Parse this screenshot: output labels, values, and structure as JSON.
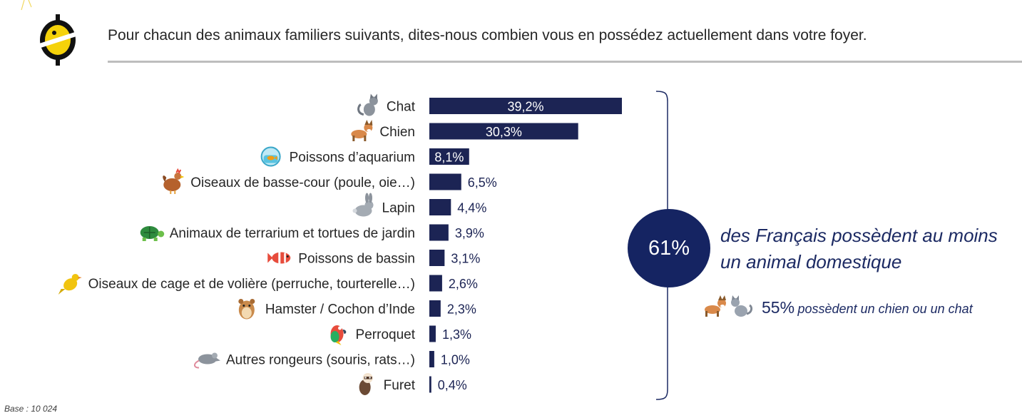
{
  "question": "Pour chacun des animaux familiers suivants, dites-nous combien vous en possédez actuellement dans votre foyer.",
  "chart_data": {
    "type": "bar",
    "orientation": "horizontal",
    "categories": [
      "Chat",
      "Chien",
      "Poissons d’aquarium",
      "Oiseaux de basse-cour (poule, oie…)",
      "Lapin",
      "Animaux de terrarium et tortues de jardin",
      "Poissons de bassin",
      "Oiseaux de cage et de volière (perruche, tourterelle…)",
      "Hamster / Cochon d’Inde",
      "Perroquet",
      "Autres rongeurs (souris, rats…)",
      "Furet"
    ],
    "values": [
      39.2,
      30.3,
      8.1,
      6.5,
      4.4,
      3.9,
      3.1,
      2.6,
      2.3,
      1.3,
      1.0,
      0.4
    ],
    "value_labels": [
      "39,2%",
      "30,3%",
      "8,1%",
      "6,5%",
      "4,4%",
      "3,9%",
      "3,1%",
      "2,6%",
      "2,3%",
      "1,3%",
      "1,0%",
      "0,4%"
    ],
    "icons": [
      "cat-icon",
      "dog-icon",
      "fishbowl-icon",
      "hen-icon",
      "rabbit-icon",
      "turtle-icon",
      "fish-icon",
      "canary-icon",
      "hamster-icon",
      "parrot-icon",
      "mouse-icon",
      "ferret-icon"
    ],
    "bar_color": "#1c2454",
    "unit": "%",
    "title": "",
    "xlabel": "",
    "ylabel": ""
  },
  "summary": {
    "big_pct": "61%",
    "headline": "des Français possèdent au moins un animal domestique",
    "sub_pct": "55%",
    "sub_text": "possèdent un chien ou un chat",
    "sub_icons": [
      "dog-icon",
      "cat-icon"
    ]
  },
  "base": "Base : 10 024",
  "colors": {
    "accent": "#152462",
    "logo_yellow": "#f5d20a",
    "text": "#262626"
  }
}
